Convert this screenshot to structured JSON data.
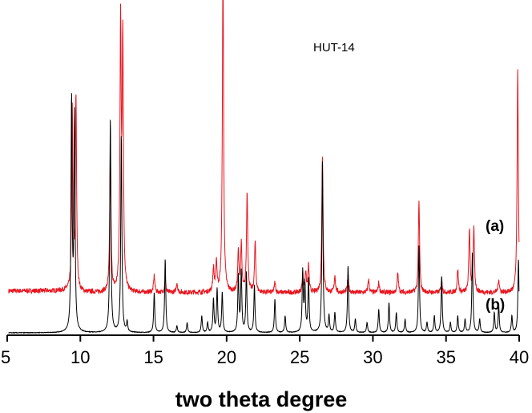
{
  "chart_data": {
    "type": "line",
    "title": "",
    "xlabel": "two theta degree",
    "ylabel": "",
    "xlim": [
      5,
      40
    ],
    "xticks": [
      5,
      10,
      15,
      20,
      25,
      30,
      35,
      40
    ],
    "grid": false,
    "annotation": "HUT-14",
    "series": [
      {
        "label": "(a)",
        "color": "#e8141e",
        "baseline": 0.12,
        "peaks": [
          {
            "x": 9.45,
            "h": 0.54
          },
          {
            "x": 9.7,
            "h": 0.58
          },
          {
            "x": 12.05,
            "h": 0.43
          },
          {
            "x": 12.75,
            "h": 0.78
          },
          {
            "x": 12.9,
            "h": 0.74
          },
          {
            "x": 15.05,
            "h": 0.05
          },
          {
            "x": 15.8,
            "h": 0.04
          },
          {
            "x": 16.6,
            "h": 0.03
          },
          {
            "x": 19.1,
            "h": 0.07
          },
          {
            "x": 19.3,
            "h": 0.09
          },
          {
            "x": 19.75,
            "h": 0.98
          },
          {
            "x": 20.8,
            "h": 0.12
          },
          {
            "x": 21.0,
            "h": 0.14
          },
          {
            "x": 21.4,
            "h": 0.3
          },
          {
            "x": 21.95,
            "h": 0.15
          },
          {
            "x": 23.3,
            "h": 0.03
          },
          {
            "x": 25.2,
            "h": 0.05
          },
          {
            "x": 25.4,
            "h": 0.06
          },
          {
            "x": 25.6,
            "h": 0.08
          },
          {
            "x": 26.55,
            "h": 0.41
          },
          {
            "x": 27.4,
            "h": 0.05
          },
          {
            "x": 28.3,
            "h": 0.05
          },
          {
            "x": 29.7,
            "h": 0.04
          },
          {
            "x": 30.4,
            "h": 0.03
          },
          {
            "x": 31.7,
            "h": 0.06
          },
          {
            "x": 33.15,
            "h": 0.27
          },
          {
            "x": 34.7,
            "h": 0.04
          },
          {
            "x": 35.8,
            "h": 0.07
          },
          {
            "x": 36.6,
            "h": 0.19
          },
          {
            "x": 36.9,
            "h": 0.19
          },
          {
            "x": 38.6,
            "h": 0.04
          },
          {
            "x": 39.9,
            "h": 0.66
          }
        ]
      },
      {
        "label": "(b)",
        "color": "#000000",
        "baseline": 0.0,
        "peaks": [
          {
            "x": 9.4,
            "h": 0.69
          },
          {
            "x": 9.6,
            "h": 0.64
          },
          {
            "x": 12.05,
            "h": 0.64
          },
          {
            "x": 12.8,
            "h": 0.59
          },
          {
            "x": 13.2,
            "h": 0.03
          },
          {
            "x": 15.05,
            "h": 0.12
          },
          {
            "x": 15.8,
            "h": 0.22
          },
          {
            "x": 16.6,
            "h": 0.02
          },
          {
            "x": 17.3,
            "h": 0.03
          },
          {
            "x": 18.3,
            "h": 0.05
          },
          {
            "x": 18.7,
            "h": 0.03
          },
          {
            "x": 19.1,
            "h": 0.1
          },
          {
            "x": 19.35,
            "h": 0.13
          },
          {
            "x": 19.7,
            "h": 0.12
          },
          {
            "x": 20.8,
            "h": 0.17
          },
          {
            "x": 21.0,
            "h": 0.18
          },
          {
            "x": 21.35,
            "h": 0.18
          },
          {
            "x": 21.9,
            "h": 0.14
          },
          {
            "x": 23.3,
            "h": 0.1
          },
          {
            "x": 24.0,
            "h": 0.05
          },
          {
            "x": 25.2,
            "h": 0.18
          },
          {
            "x": 25.35,
            "h": 0.14
          },
          {
            "x": 25.6,
            "h": 0.16
          },
          {
            "x": 26.55,
            "h": 0.51
          },
          {
            "x": 27.0,
            "h": 0.05
          },
          {
            "x": 27.4,
            "h": 0.06
          },
          {
            "x": 28.3,
            "h": 0.2
          },
          {
            "x": 28.8,
            "h": 0.04
          },
          {
            "x": 29.6,
            "h": 0.03
          },
          {
            "x": 30.4,
            "h": 0.07
          },
          {
            "x": 31.1,
            "h": 0.09
          },
          {
            "x": 31.6,
            "h": 0.06
          },
          {
            "x": 32.2,
            "h": 0.04
          },
          {
            "x": 33.15,
            "h": 0.26
          },
          {
            "x": 33.7,
            "h": 0.03
          },
          {
            "x": 34.2,
            "h": 0.05
          },
          {
            "x": 34.7,
            "h": 0.17
          },
          {
            "x": 35.3,
            "h": 0.03
          },
          {
            "x": 35.8,
            "h": 0.05
          },
          {
            "x": 36.3,
            "h": 0.04
          },
          {
            "x": 36.8,
            "h": 0.24
          },
          {
            "x": 37.3,
            "h": 0.04
          },
          {
            "x": 38.3,
            "h": 0.06
          },
          {
            "x": 38.6,
            "h": 0.08
          },
          {
            "x": 39.5,
            "h": 0.05
          },
          {
            "x": 39.95,
            "h": 0.22
          }
        ]
      }
    ]
  }
}
